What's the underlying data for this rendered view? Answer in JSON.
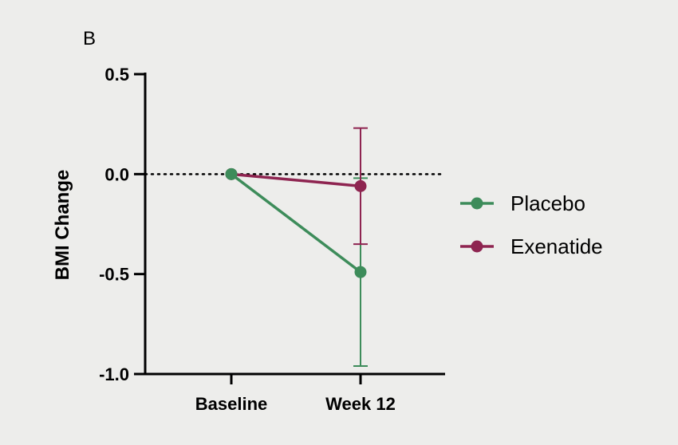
{
  "panel_label": "B",
  "chart_data": {
    "type": "line",
    "title": "",
    "xlabel": "",
    "ylabel": "BMI Change",
    "categories": [
      "Baseline",
      "Week 12"
    ],
    "ylim": [
      -1.0,
      0.5
    ],
    "yticks": [
      0.5,
      0.0,
      -0.5,
      -1.0
    ],
    "ytick_labels": [
      "0.5",
      "0.0",
      "-0.5",
      "-1.0"
    ],
    "reference_line": {
      "y": 0.0,
      "style": "dotted"
    },
    "legend_position": "right",
    "series": [
      {
        "name": "Placebo",
        "color": "#3d8c5a",
        "values": [
          0.0,
          -0.49
        ],
        "error": [
          null,
          0.47
        ]
      },
      {
        "name": "Exenatide",
        "color": "#8e2450",
        "values": [
          0.0,
          -0.06
        ],
        "error": [
          null,
          0.29
        ]
      }
    ]
  }
}
